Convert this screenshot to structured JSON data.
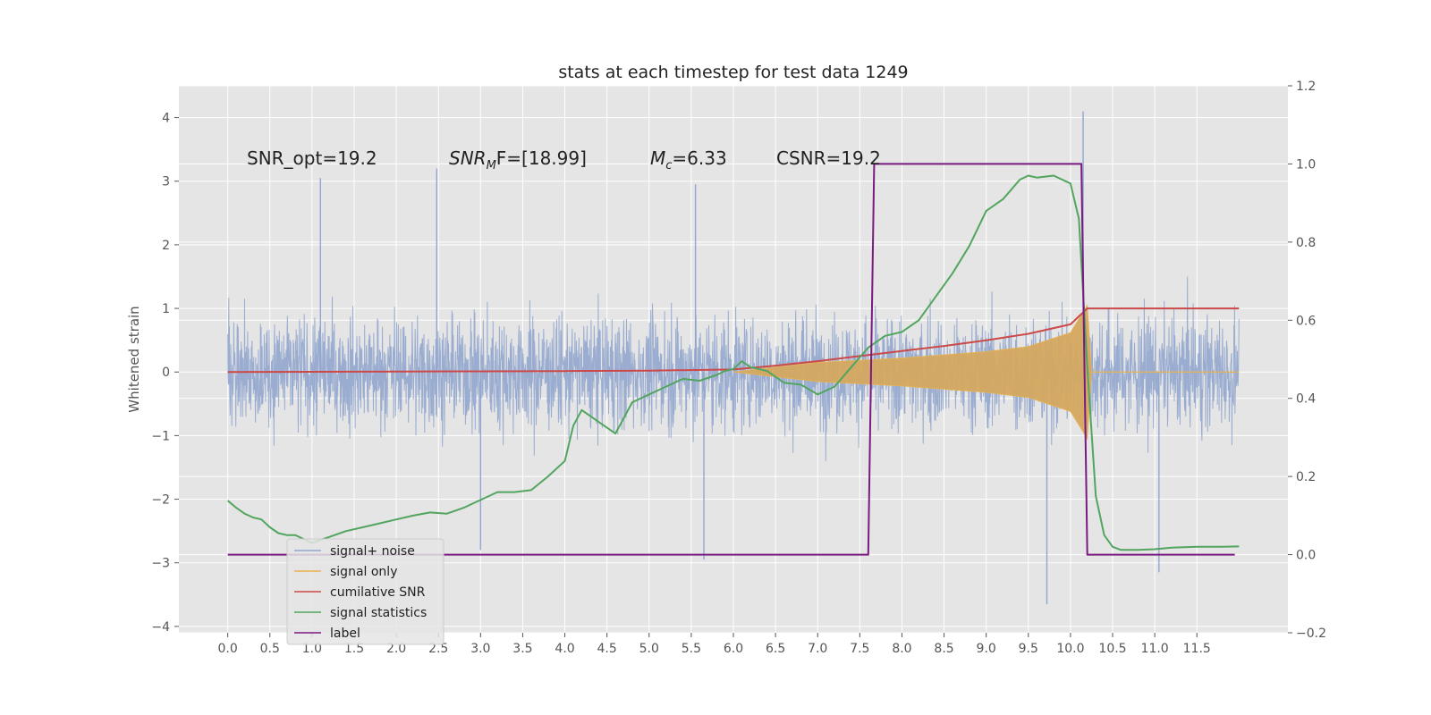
{
  "chart_data": {
    "type": "line",
    "title": "stats at each timestep for test data 1249",
    "ylabel": "Whitened strain",
    "ylabel_right": "",
    "xlim": [
      -0.58,
      12.58
    ],
    "ylim": [
      -4.1,
      4.5
    ],
    "ylim_right": [
      -0.2,
      1.2
    ],
    "x_ticks": [
      0.0,
      0.5,
      1.0,
      1.5,
      2.0,
      2.5,
      3.0,
      3.5,
      4.0,
      4.5,
      5.0,
      5.5,
      6.0,
      6.5,
      7.0,
      7.5,
      8.0,
      8.5,
      9.0,
      9.5,
      10.0,
      10.5,
      11.0,
      11.5
    ],
    "x_tick_labels": [
      "0.0",
      "0.5",
      "1.0",
      "1.5",
      "2.0",
      "2.5",
      "3.0",
      "3.5",
      "4.0",
      "4.5",
      "5.0",
      "5.5",
      "6.0",
      "6.5",
      "7.0",
      "7.5",
      "8.0",
      "8.5",
      "9.0",
      "9.5",
      "10.0",
      "10.5",
      "11.0",
      "11.5"
    ],
    "y_ticks": [
      -4,
      -3,
      -2,
      -1,
      0,
      1,
      2,
      3,
      4
    ],
    "y_tick_labels": [
      "−4",
      "−3",
      "−2",
      "−1",
      "0",
      "1",
      "2",
      "3",
      "4"
    ],
    "y_ticks_right": [
      -0.2,
      0.0,
      0.2,
      0.4,
      0.6,
      0.8,
      1.0,
      1.2
    ],
    "y_tick_labels_right": [
      "−0.2",
      "0.0",
      "0.2",
      "0.4",
      "0.6",
      "0.8",
      "1.0",
      "1.2"
    ],
    "grid": true,
    "legend_position": "lower-left",
    "annotations": [
      "SNR_opt=19.2",
      "SNR",
      "M",
      "F=[18.99]",
      "c",
      "=6.33",
      "CSNR=19.2"
    ],
    "series": [
      {
        "name": "signal+ noise",
        "axis": "left",
        "color": "#91a6ce",
        "kind": "noise",
        "x_range": [
          0.0,
          12.0
        ],
        "typical_range": [
          -1.6,
          1.6
        ],
        "spikes": [
          {
            "x": 1.1,
            "y": 3.05
          },
          {
            "x": 2.48,
            "y": 3.2
          },
          {
            "x": 5.55,
            "y": 2.95
          },
          {
            "x": 10.15,
            "y": 4.1
          },
          {
            "x": 9.72,
            "y": -3.65
          },
          {
            "x": 11.05,
            "y": -3.15
          },
          {
            "x": 5.65,
            "y": -2.95
          },
          {
            "x": 3.0,
            "y": -2.8
          }
        ]
      },
      {
        "name": "signal only",
        "axis": "left",
        "color": "#e9b24e",
        "kind": "chirp",
        "envelope": [
          {
            "x": 6.0,
            "y": 0.0
          },
          {
            "x": 7.0,
            "y": 0.15
          },
          {
            "x": 8.0,
            "y": 0.22
          },
          {
            "x": 9.0,
            "y": 0.32
          },
          {
            "x": 9.5,
            "y": 0.4
          },
          {
            "x": 10.0,
            "y": 0.62
          },
          {
            "x": 10.2,
            "y": 1.05
          },
          {
            "x": 10.25,
            "y": 0.0
          }
        ]
      },
      {
        "name": "cumilative SNR",
        "axis": "left",
        "color": "#cc4949",
        "x": [
          0.0,
          1.0,
          2.0,
          3.0,
          4.0,
          5.0,
          6.0,
          6.5,
          7.0,
          7.5,
          8.0,
          8.5,
          9.0,
          9.5,
          10.0,
          10.2,
          10.3,
          11.0,
          12.0
        ],
        "values": [
          0.0,
          0.003,
          0.007,
          0.01,
          0.015,
          0.022,
          0.04,
          0.1,
          0.17,
          0.25,
          0.33,
          0.41,
          0.5,
          0.6,
          0.75,
          1.0,
          1.0,
          1.0,
          1.0
        ]
      },
      {
        "name": "signal statistics",
        "axis": "right",
        "color": "#52a55f",
        "x": [
          0.0,
          0.1,
          0.2,
          0.3,
          0.4,
          0.5,
          0.6,
          0.7,
          0.8,
          0.9,
          1.0,
          1.2,
          1.4,
          1.6,
          1.8,
          2.0,
          2.2,
          2.4,
          2.6,
          2.8,
          3.0,
          3.2,
          3.4,
          3.6,
          3.8,
          4.0,
          4.1,
          4.2,
          4.4,
          4.6,
          4.7,
          4.8,
          5.0,
          5.2,
          5.4,
          5.6,
          5.8,
          5.9,
          6.0,
          6.1,
          6.2,
          6.4,
          6.6,
          6.8,
          7.0,
          7.2,
          7.4,
          7.6,
          7.8,
          8.0,
          8.2,
          8.4,
          8.6,
          8.8,
          9.0,
          9.2,
          9.4,
          9.5,
          9.6,
          9.8,
          10.0,
          10.1,
          10.2,
          10.3,
          10.4,
          10.5,
          10.6,
          10.8,
          11.0,
          11.2,
          11.5,
          11.8,
          12.0
        ],
        "values": [
          0.138,
          0.12,
          0.105,
          0.095,
          0.09,
          0.07,
          0.055,
          0.05,
          0.05,
          0.04,
          0.03,
          0.045,
          0.06,
          0.07,
          0.08,
          0.09,
          0.1,
          0.108,
          0.105,
          0.12,
          0.14,
          0.16,
          0.16,
          0.165,
          0.2,
          0.24,
          0.33,
          0.37,
          0.34,
          0.31,
          0.35,
          0.39,
          0.41,
          0.43,
          0.45,
          0.445,
          0.46,
          0.47,
          0.475,
          0.495,
          0.48,
          0.47,
          0.44,
          0.435,
          0.41,
          0.43,
          0.48,
          0.53,
          0.56,
          0.57,
          0.6,
          0.66,
          0.72,
          0.79,
          0.88,
          0.91,
          0.96,
          0.97,
          0.965,
          0.97,
          0.95,
          0.86,
          0.48,
          0.15,
          0.05,
          0.02,
          0.012,
          0.012,
          0.014,
          0.018,
          0.02,
          0.02,
          0.021
        ]
      },
      {
        "name": "label",
        "axis": "right",
        "color": "#7a1a80",
        "x": [
          0.0,
          7.6,
          7.67,
          10.13,
          10.2,
          11.95
        ],
        "values": [
          0.0,
          0.0,
          1.0,
          1.0,
          0.0,
          0.0
        ]
      }
    ]
  }
}
